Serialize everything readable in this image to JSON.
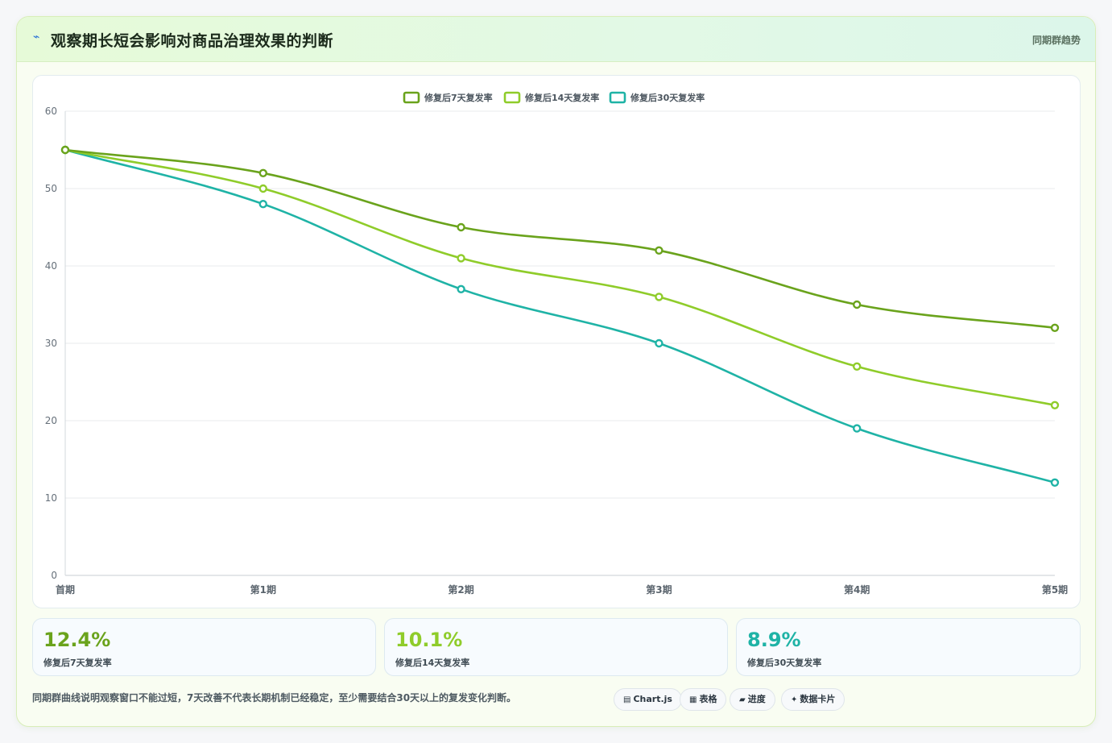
{
  "header": {
    "icon": "lightning-icon",
    "icon_glyph": "⌁",
    "title": "观察期长短会影响对商品治理效果的判断",
    "tag": "同期群趋势"
  },
  "chart_data": {
    "type": "line",
    "categories": [
      "首期",
      "第1期",
      "第2期",
      "第3期",
      "第4期",
      "第5期"
    ],
    "series": [
      {
        "name": "修复后7天复发率",
        "color": "#6aa31c",
        "values": [
          55,
          52,
          45,
          42,
          35,
          32
        ]
      },
      {
        "name": "修复后14天复发率",
        "color": "#8fcc2a",
        "values": [
          55,
          50,
          41,
          36,
          27,
          22
        ]
      },
      {
        "name": "修复后30天复发率",
        "color": "#1fb3a6",
        "values": [
          55,
          48,
          37,
          30,
          19,
          12
        ]
      }
    ],
    "ylim": [
      0,
      60
    ],
    "yticks": [
      0,
      10,
      20,
      30,
      40,
      50,
      60
    ],
    "grid": true,
    "legend": "top-center",
    "smooth": true
  },
  "stats": [
    {
      "value": "12.4%",
      "label": "修复后7天复发率",
      "color": "#6aa31c"
    },
    {
      "value": "10.1%",
      "label": "修复后14天复发率",
      "color": "#8fcc2a"
    },
    {
      "value": "8.9%",
      "label": "修复后30天复发率",
      "color": "#1fb3a6"
    }
  ],
  "footnote": "同期群曲线说明观察窗口不能过短，7天改善不代表长期机制已经稳定，至少需要结合30天以上的复发变化判断。",
  "chips": [
    {
      "icon": "chart-icon",
      "glyph": "▤",
      "label": "Chart.js"
    },
    {
      "icon": "table-icon",
      "glyph": "▦",
      "label": "表格"
    },
    {
      "icon": "progress-icon",
      "glyph": "▰",
      "label": "进度"
    },
    {
      "icon": "card-icon",
      "glyph": "✦",
      "label": "数据卡片"
    }
  ]
}
